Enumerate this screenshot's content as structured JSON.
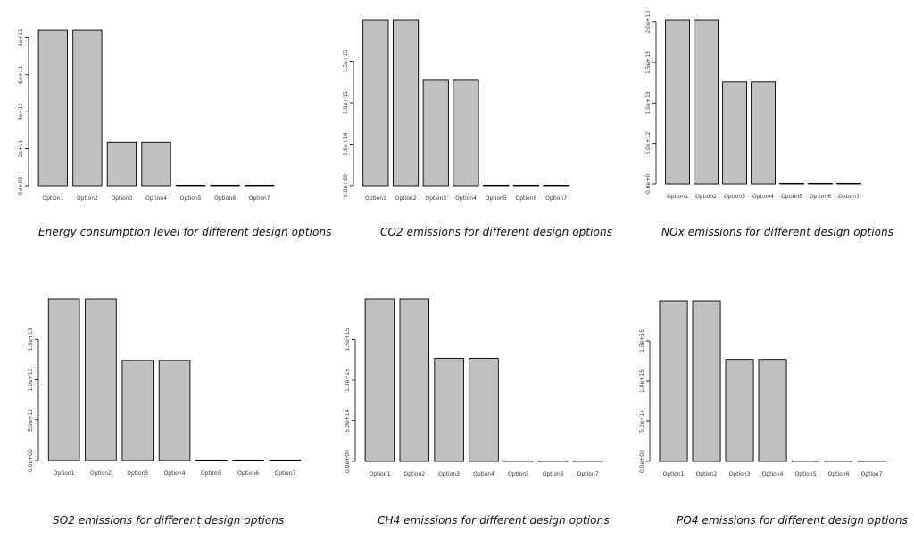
{
  "chart_data": [
    {
      "type": "bar",
      "title": "Energy consumption level for different design options",
      "categories": [
        "Option1",
        "Option2",
        "Option3",
        "Option4",
        "Option5",
        "Option6",
        "Option7"
      ],
      "values": [
        840000000000,
        840000000000,
        235000000000,
        235000000000,
        2000000000,
        2000000000,
        2000000000
      ],
      "yticks": [
        0,
        200000000000,
        400000000000,
        600000000000,
        800000000000
      ],
      "ytick_labels": [
        "0e+00",
        "2e+11",
        "4e+11",
        "6e+11",
        "8e+11"
      ],
      "ylim": [
        0,
        850000000000
      ]
    },
    {
      "type": "bar",
      "title": "CO2 emissions for different design options",
      "categories": [
        "Option1",
        "Option2",
        "Option3",
        "Option4",
        "Option5",
        "Option6",
        "Option7"
      ],
      "values": [
        2000000000000000,
        2000000000000000,
        1270000000000000,
        1270000000000000,
        5000000000000,
        5000000000000,
        5000000000000
      ],
      "yticks": [
        0,
        500000000000000,
        1000000000000000,
        1500000000000000
      ],
      "ytick_labels": [
        "0.0e+00",
        "5.0e+14",
        "1.0e+15",
        "1.5e+15"
      ],
      "ylim": [
        0,
        2000000000000000
      ]
    },
    {
      "type": "bar",
      "title": "NOx emissions for different design options",
      "categories": [
        "Option1",
        "Option2",
        "Option3",
        "Option4",
        "Option5",
        "Option6",
        "Option7"
      ],
      "values": [
        20300000000000,
        20300000000000,
        12600000000000,
        12600000000000,
        50000000000,
        50000000000,
        50000000000
      ],
      "yticks": [
        0,
        5000000000000,
        10000000000000,
        15000000000000,
        20000000000000
      ],
      "ytick_labels": [
        "0.0e+0",
        "5.0e+12",
        "1.0e+13",
        "1.5e+13",
        "2.0e+13"
      ],
      "ylim": [
        0,
        20300000000000
      ]
    },
    {
      "type": "bar",
      "title": "SO2 emissions for different design options",
      "categories": [
        "Option1",
        "Option2",
        "Option3",
        "Option4",
        "Option5",
        "Option6",
        "Option7"
      ],
      "values": [
        20000000000000,
        20000000000000,
        12400000000000,
        12400000000000,
        50000000000,
        50000000000,
        50000000000
      ],
      "yticks": [
        0,
        5000000000000,
        10000000000000,
        15000000000000
      ],
      "ytick_labels": [
        "0.0e+00",
        "5.0e+12",
        "1.0e+13",
        "1.5e+13"
      ],
      "ylim": [
        0,
        20000000000000
      ]
    },
    {
      "type": "bar",
      "title": "CH4 emissions for different design options",
      "categories": [
        "Option1",
        "Option2",
        "Option3",
        "Option4",
        "Option5",
        "Option6",
        "Option7"
      ],
      "values": [
        2000000000000000,
        2000000000000000,
        1270000000000000,
        1270000000000000,
        5000000000000,
        5000000000000,
        5000000000000
      ],
      "yticks": [
        0,
        500000000000000,
        1000000000000000,
        1500000000000000
      ],
      "ytick_labels": [
        "0.0e+00",
        "5.0e+14",
        "1.0e+15",
        "1.5e+15"
      ],
      "ylim": [
        0,
        2000000000000000
      ]
    },
    {
      "type": "bar",
      "title": "PO4 emissions for different design options",
      "categories": [
        "Option1",
        "Option2",
        "Option3",
        "Option4",
        "Option5",
        "Option6",
        "Option7"
      ],
      "values": [
        2000000000000000,
        2000000000000000,
        1270000000000000,
        1270000000000000,
        5000000000000,
        5000000000000,
        5000000000000
      ],
      "yticks": [
        0,
        500000000000000,
        1000000000000000,
        1500000000000000
      ],
      "ytick_labels": [
        "0.0e+00",
        "5.0e+14",
        "1.0e+15",
        "1.5e+15"
      ],
      "ylim": [
        0,
        2000000000000000
      ]
    }
  ],
  "colors": {
    "bar_fill": "#c0c0c0",
    "bar_stroke": "#000000",
    "axis": "#000000"
  }
}
